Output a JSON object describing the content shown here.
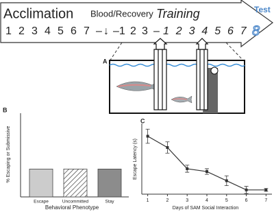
{
  "header": {
    "acclimation": "Acclimation",
    "blood_recovery": "Blood/Recovery",
    "training": "Training",
    "test": "Test",
    "pre_days": [
      "1",
      "2",
      "3",
      "4",
      "5",
      "6",
      "7",
      "–",
      "↓",
      "–1",
      "2",
      "3",
      "–"
    ],
    "training_days": [
      "1",
      "2",
      "3",
      "4",
      "5",
      "6",
      "7"
    ],
    "test_day": "8"
  },
  "panel_a": {
    "label": "A"
  },
  "chart_data": [
    {
      "type": "bar",
      "label": "B",
      "y_label": "% Escaping or Submissive",
      "x_label": "Behavioral Phenotype",
      "categories": [
        "Escape",
        "Uncommitted",
        "Stay"
      ],
      "values": [
        33.3,
        33.3,
        33.3
      ],
      "colors": [
        "#cccccc",
        "#ffffff",
        "#8c8c8c"
      ],
      "hatched": [
        false,
        true,
        false
      ],
      "ylim": [
        0,
        100
      ]
    },
    {
      "type": "line",
      "label": "C",
      "y_label": "Escape Latency (s)",
      "x_label": "Days of SAM Social Interaction",
      "x": [
        1,
        2,
        3,
        4,
        5,
        6,
        7
      ],
      "values": [
        82,
        66,
        36,
        32,
        19,
        6,
        6
      ],
      "errors": [
        10,
        8,
        5,
        4,
        7,
        5,
        2
      ],
      "color": "#333333",
      "xlim": [
        0.7,
        7.3
      ],
      "xticks": [
        1,
        2,
        3,
        4,
        5,
        6,
        7
      ],
      "ylim": [
        0,
        100
      ]
    }
  ]
}
